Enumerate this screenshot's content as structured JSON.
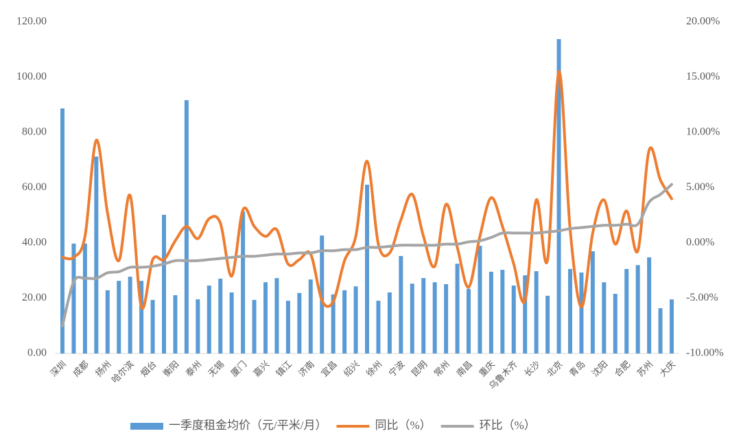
{
  "chart_data": {
    "type": "bar-line",
    "categories": [
      "深圳",
      null,
      "成都",
      null,
      "扬州",
      null,
      "哈尔滨",
      null,
      "烟台",
      null,
      "衡阳",
      null,
      "泰州",
      null,
      "无锡",
      null,
      "厦门",
      null,
      "嘉兴",
      null,
      "镇江",
      null,
      "济南",
      null,
      "宜昌",
      null,
      "绍兴",
      null,
      "徐州",
      null,
      "宁波",
      null,
      "昆明",
      null,
      "常州",
      null,
      "南昌",
      null,
      "重庆",
      null,
      "乌鲁木齐",
      null,
      "长沙",
      null,
      "北京",
      null,
      "青岛",
      null,
      "沈阳",
      null,
      "合肥",
      null,
      "苏州",
      null,
      "大庆"
    ],
    "series": [
      {
        "name": "一季度租金均价（元/平米/月）",
        "color": "#5b9bd5",
        "kind": "bar",
        "values": [
          88.7,
          39.8,
          39.8,
          71.3,
          22.9,
          26.3,
          27.8,
          26.3,
          19.4,
          50.2,
          21.1,
          91.7,
          19.6,
          24.6,
          27.1,
          22.1,
          51.4,
          19.4,
          25.8,
          27.3,
          19.1,
          21.9,
          26.8,
          42.7,
          21.4,
          22.9,
          24.3,
          61.1,
          19.1,
          22.1,
          35.3,
          25.3,
          27.3,
          25.8,
          25.1,
          32.5,
          23.4,
          39.0,
          29.6,
          30.3,
          24.6,
          28.3,
          29.8,
          20.9,
          113.8,
          30.6,
          29.3,
          37.0,
          25.8,
          21.6,
          30.6,
          32.0,
          34.8,
          16.4,
          19.6
        ]
      },
      {
        "name": "同比（%）",
        "color": "#ed7d31",
        "kind": "line",
        "axis": "y2",
        "values": [
          -1.3,
          -1.3,
          0.6,
          9.3,
          2.7,
          -1.6,
          4.3,
          -5.8,
          -1.5,
          -1.5,
          0.2,
          1.5,
          0.4,
          2.2,
          1.8,
          -3.0,
          3.0,
          1.5,
          0.6,
          1.2,
          -1.9,
          -1.5,
          -1.0,
          -5.2,
          -5.3,
          -1.6,
          0.6,
          7.4,
          -0.1,
          -0.9,
          2.1,
          4.4,
          0.6,
          -2.1,
          3.5,
          -0.4,
          -4.0,
          0.6,
          4.1,
          1.5,
          -1.9,
          -5.2,
          3.9,
          -1.5,
          15.5,
          1.2,
          -5.8,
          0.9,
          3.9,
          -0.1,
          2.9,
          -0.7,
          8.4,
          5.7,
          4.0
        ]
      },
      {
        "name": "环比（%）",
        "color": "#a5a5a5",
        "kind": "line",
        "axis": "y2",
        "values": [
          -7.5,
          -3.5,
          -3.2,
          -3.2,
          -2.7,
          -2.6,
          -2.2,
          -2.2,
          -2.1,
          -1.9,
          -1.6,
          -1.6,
          -1.6,
          -1.5,
          -1.4,
          -1.3,
          -1.2,
          -1.2,
          -1.1,
          -1.0,
          -1.0,
          -0.9,
          -0.9,
          -0.7,
          -0.7,
          -0.6,
          -0.6,
          -0.4,
          -0.4,
          -0.3,
          -0.2,
          -0.2,
          -0.2,
          -0.2,
          -0.1,
          -0.1,
          0.1,
          0.2,
          0.5,
          0.9,
          0.9,
          0.9,
          0.9,
          1.0,
          1.1,
          1.3,
          1.4,
          1.5,
          1.6,
          1.6,
          1.7,
          1.7,
          3.7,
          4.4,
          5.3
        ]
      }
    ],
    "ylim": [
      0,
      120
    ],
    "yticks": [
      {
        "value": 0,
        "label": "0.00"
      },
      {
        "value": 20,
        "label": "20.00"
      },
      {
        "value": 40,
        "label": "40.00"
      },
      {
        "value": 60,
        "label": "60.00"
      },
      {
        "value": 80,
        "label": "80.00"
      },
      {
        "value": 100,
        "label": "100.00"
      },
      {
        "value": 120,
        "label": "120.00"
      }
    ],
    "y2lim": [
      -10,
      20
    ],
    "y2ticks": [
      {
        "value": -10,
        "label": "-10.00%"
      },
      {
        "value": -5,
        "label": "-5.00%"
      },
      {
        "value": 0,
        "label": "0.00%"
      },
      {
        "value": 5,
        "label": "5.00%"
      },
      {
        "value": 10,
        "label": "10.00%"
      },
      {
        "value": 15,
        "label": "15.00%"
      },
      {
        "value": 20,
        "label": "20.00%"
      }
    ],
    "legend": "bottom"
  }
}
